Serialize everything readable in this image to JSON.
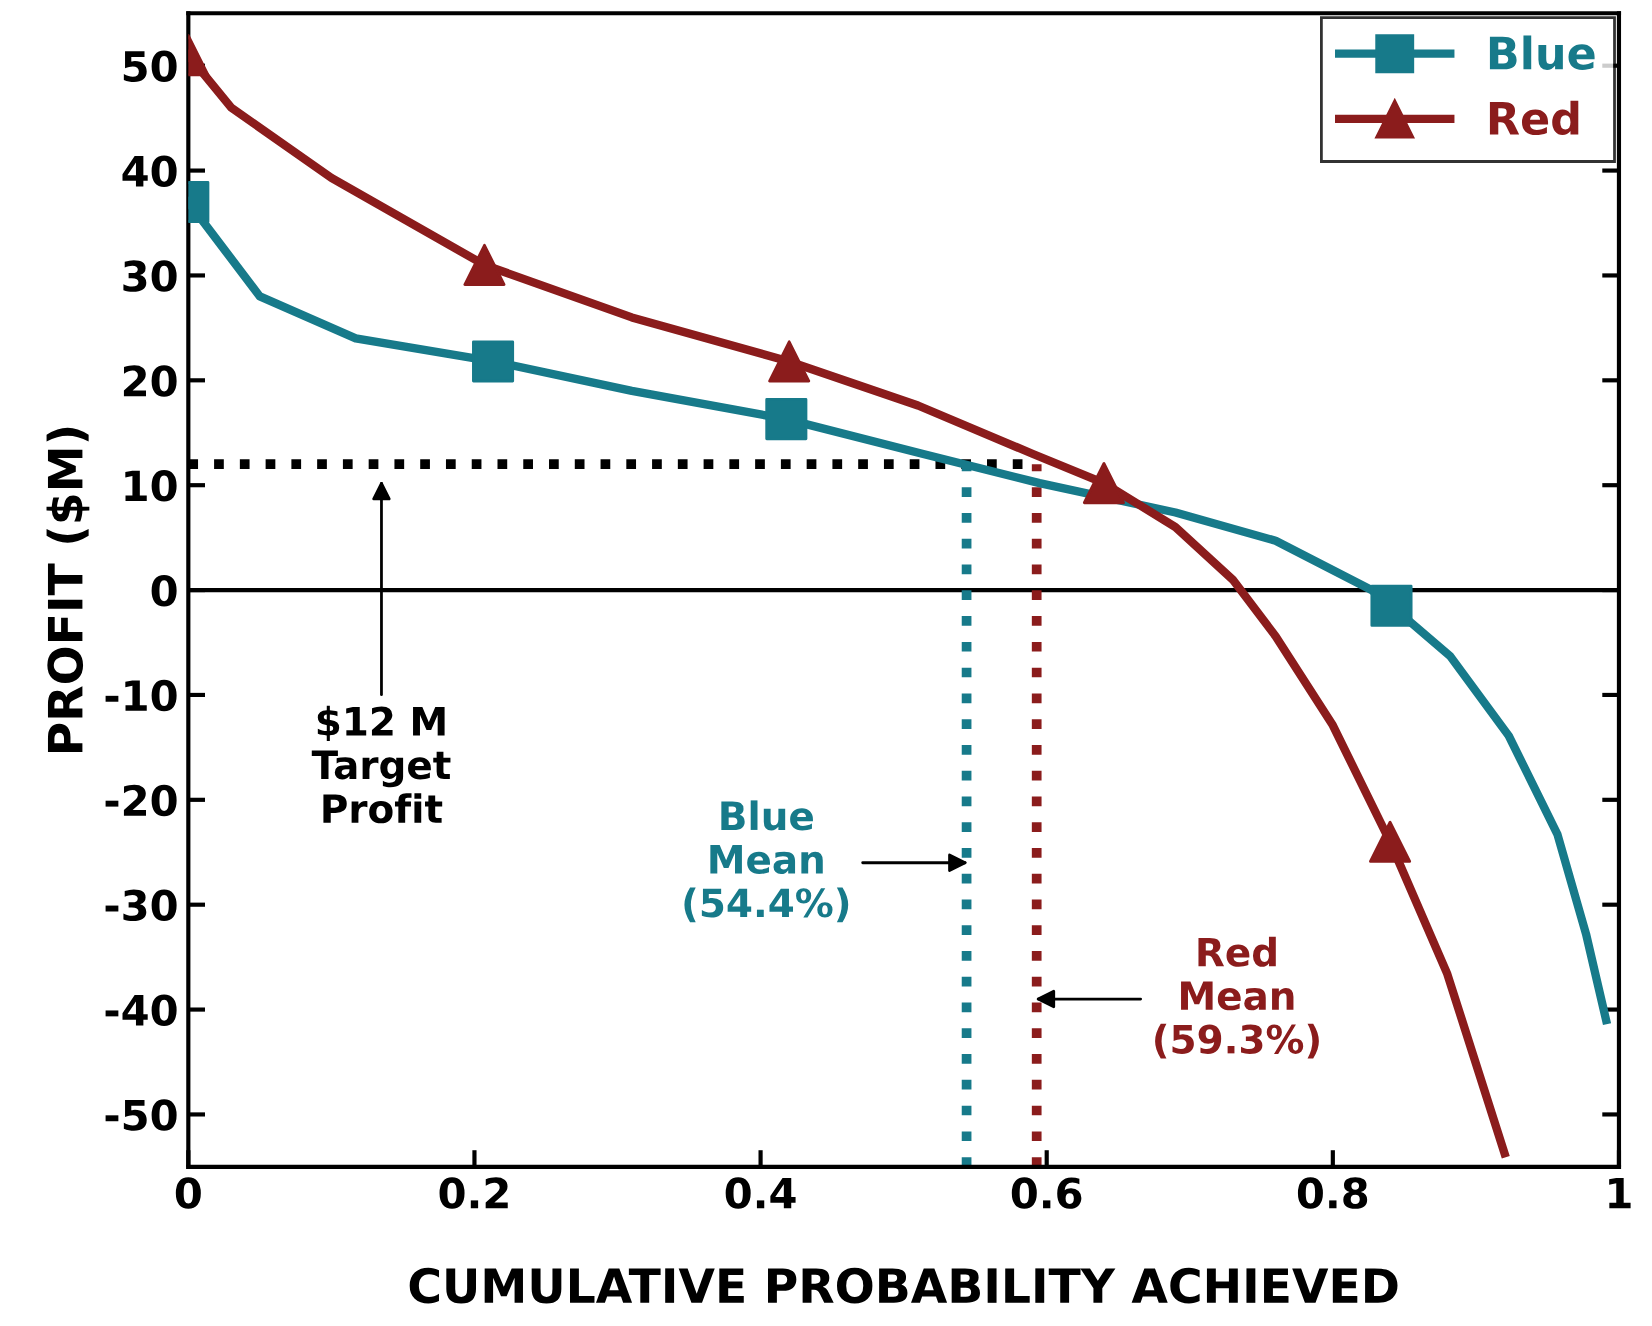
{
  "chart_data": {
    "type": "line",
    "xlabel": "CUMULATIVE PROBABILITY ACHIEVED",
    "ylabel": "PROFIT ($M)",
    "xlim": [
      0,
      1
    ],
    "ylim": [
      -55,
      55
    ],
    "xticks": [
      0,
      0.2,
      0.4,
      0.6,
      0.8,
      1
    ],
    "yticks": [
      -50,
      -40,
      -30,
      -20,
      -10,
      0,
      10,
      20,
      30,
      40,
      50
    ],
    "grid": false,
    "legend": "top right",
    "line_style": "solid",
    "series": [
      {
        "color": "#177a8a",
        "x": [
          0,
          0.05,
          0.117,
          0.213,
          0.31,
          0.418,
          0.513,
          0.595,
          0.69,
          0.76,
          0.827,
          0.841,
          0.882,
          0.923,
          0.957,
          0.977,
          0.991
        ],
        "values": [
          37,
          28,
          24,
          21.8,
          19,
          16.3,
          13,
          10.2,
          7.4,
          4.7,
          0,
          -1.5,
          -6.3,
          -13.9,
          -23.3,
          -32.8,
          -41
        ]
      },
      {
        "color": "#8b1c1c",
        "x": [
          0,
          0.03,
          0.1,
          0.207,
          0.31,
          0.42,
          0.51,
          0.59,
          0.64,
          0.69,
          0.73,
          0.76,
          0.8,
          0.84,
          0.88,
          0.92
        ],
        "values": [
          51,
          46,
          39.3,
          31,
          26,
          21.8,
          17.6,
          13,
          10.2,
          6,
          1,
          -4.4,
          -12.9,
          -24,
          -36.6,
          -53.7
        ]
      },
      {
        "type": "scatter",
        "name": "Blue",
        "color": "#177a8a",
        "marker": "square",
        "x": [
          0,
          0.213,
          0.418,
          0.841
        ],
        "values": [
          37,
          21.8,
          16.3,
          -1.5
        ]
      },
      {
        "type": "scatter",
        "name": "Red",
        "color": "#8b1c1c",
        "marker": "triangle",
        "x": [
          0,
          0.207,
          0.42,
          0.64,
          0.84
        ],
        "values": [
          51,
          31,
          21.8,
          10.2,
          -24
        ]
      }
    ],
    "ref_lines": [
      {
        "axis": "y",
        "value": 0,
        "color": "#000000",
        "line_style": "solid"
      },
      {
        "axis": "y",
        "value": 12,
        "color": "#000000",
        "line_style": "dotted",
        "label": "$12 M\nTarget\nProfit"
      },
      {
        "axis": "x",
        "value": 0.544,
        "color": "#177a8a",
        "line_style": "dotted",
        "label": "Blue\nMean\n(54.4%)"
      },
      {
        "axis": "x",
        "value": 0.593,
        "color": "#8b1c1c",
        "line_style": "dotted",
        "label": "Red\nMean\n(59.3%)"
      }
    ]
  }
}
